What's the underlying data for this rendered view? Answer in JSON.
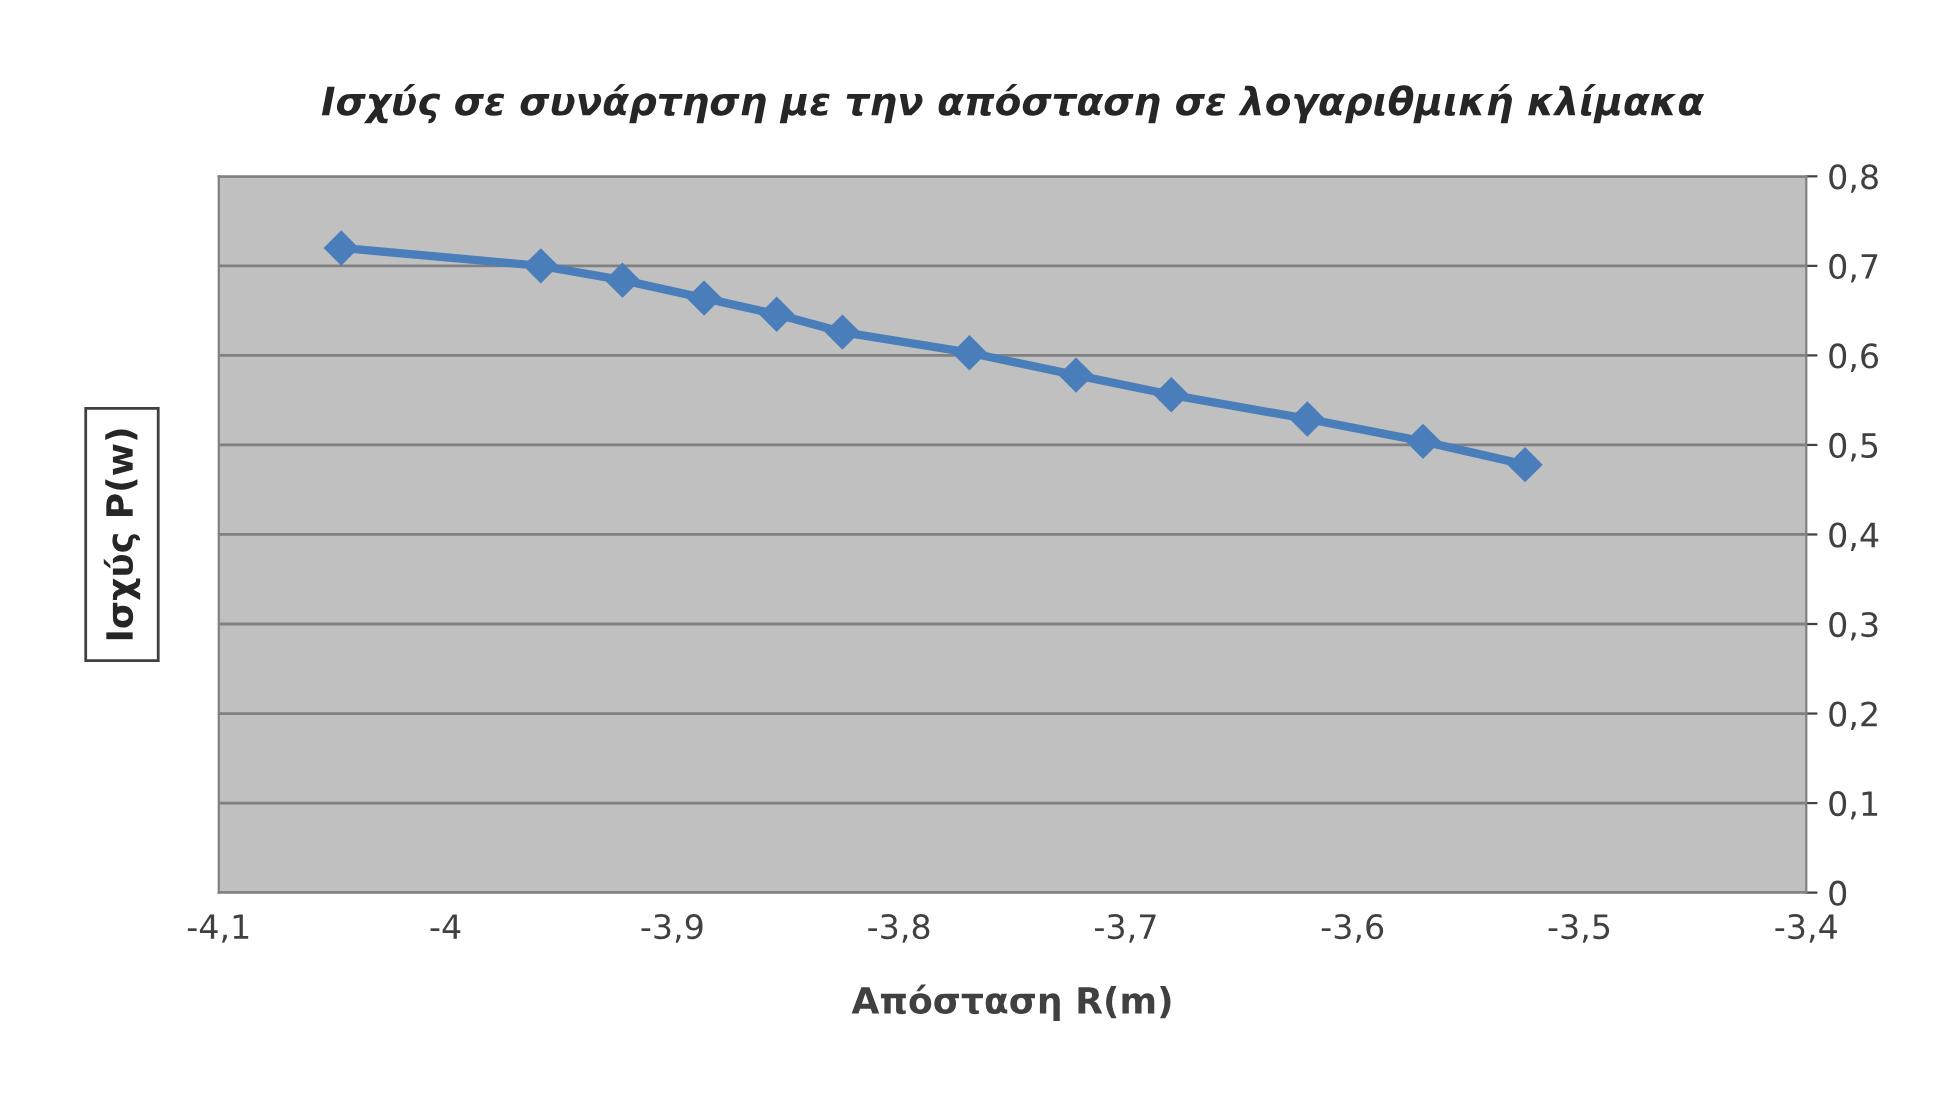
{
  "chart_data": {
    "type": "line",
    "title": "Ισχύς σε συνάρτηση με την απόσταση σε λογαριθμική κλίμακα",
    "xlabel": "Απόσταση R(m)",
    "ylabel": "Ισχύς P(w)",
    "series": [
      {
        "color": "#4a7ebb",
        "x": [
          -4.046,
          -3.958,
          -3.922,
          -3.886,
          -3.854,
          -3.825,
          -3.769,
          -3.722,
          -3.68,
          -3.62,
          -3.569,
          -3.524
        ],
        "values": [
          0.72,
          0.7,
          0.684,
          0.664,
          0.646,
          0.626,
          0.603,
          0.578,
          0.556,
          0.529,
          0.504,
          0.478
        ]
      }
    ],
    "xlim": [
      -4.1,
      -3.4
    ],
    "xticks": [
      {
        "value": -4.1,
        "label": "-4,1"
      },
      {
        "value": -4,
        "label": "-4"
      },
      {
        "value": -3.9,
        "label": "-3,9"
      },
      {
        "value": -3.8,
        "label": "-3,8"
      },
      {
        "value": -3.7,
        "label": "-3,7"
      },
      {
        "value": -3.6,
        "label": "-3,6"
      },
      {
        "value": -3.5,
        "label": "-3,5"
      },
      {
        "value": -3.4,
        "label": "-3,4"
      }
    ],
    "ylim": [
      0,
      0.8
    ],
    "yticks": [
      {
        "value": 0,
        "label": "0"
      },
      {
        "value": 0.1,
        "label": "0,1"
      },
      {
        "value": 0.2,
        "label": "0,2"
      },
      {
        "value": 0.3,
        "label": "0,3"
      },
      {
        "value": 0.4,
        "label": "0,4"
      },
      {
        "value": 0.5,
        "label": "0,5"
      },
      {
        "value": 0.6,
        "label": "0,6"
      },
      {
        "value": 0.7,
        "label": "0,7"
      },
      {
        "value": 0.8,
        "label": "0,8"
      }
    ],
    "grid": "y",
    "marker": "diamond",
    "line_style": "solid",
    "legend": false
  }
}
